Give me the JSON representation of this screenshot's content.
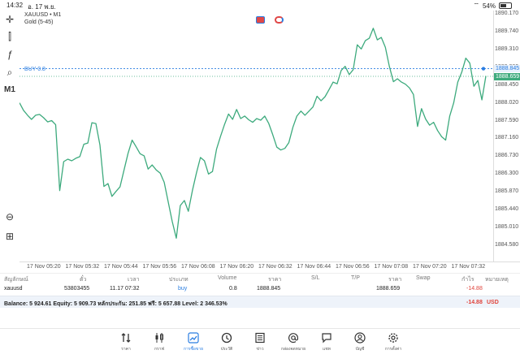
{
  "status_bar": {
    "time": "14:32",
    "date": "อ. 17 พ.ย.",
    "battery": "54%"
  },
  "chart": {
    "symbol_line": "XAUUSD • M1",
    "subtitle": "Gold (5-45)",
    "buy_label": "BUY 0.8",
    "buy_price_tag": "1888.845",
    "current_price_tag": "1888.659",
    "timeframe": "M1",
    "line_color": "#3daa7d",
    "buy_line_color": "#2a7de1"
  },
  "chart_data": {
    "type": "line",
    "series": [
      {
        "values": [
          1888.02,
          1887.84,
          1887.72,
          1887.62,
          1887.72,
          1887.74,
          1887.66,
          1887.56,
          1887.59,
          1887.49,
          1885.9,
          1886.6,
          1886.66,
          1886.62,
          1886.68,
          1886.72,
          1887.02,
          1887.05,
          1887.54,
          1887.52,
          1887.0,
          1886.0,
          1886.07,
          1885.76,
          1885.88,
          1885.99,
          1886.4,
          1886.8,
          1887.12,
          1886.96,
          1886.79,
          1886.74,
          1886.42,
          1886.52,
          1886.4,
          1886.32,
          1886.1,
          1885.62,
          1885.15,
          1884.75,
          1885.54,
          1885.66,
          1885.4,
          1885.9,
          1886.32,
          1886.7,
          1886.62,
          1886.3,
          1886.36,
          1886.9,
          1887.21,
          1887.5,
          1887.75,
          1887.62,
          1887.86,
          1887.64,
          1887.7,
          1887.61,
          1887.55,
          1887.64,
          1887.6,
          1887.7,
          1887.52,
          1887.25,
          1886.95,
          1886.88,
          1886.92,
          1887.06,
          1887.43,
          1887.7,
          1887.82,
          1887.72,
          1887.82,
          1887.92,
          1888.18,
          1888.07,
          1888.17,
          1888.34,
          1888.52,
          1888.48,
          1888.8,
          1888.9,
          1888.7,
          1888.82,
          1889.42,
          1889.32,
          1889.52,
          1889.58,
          1889.82,
          1889.54,
          1889.6,
          1889.36,
          1888.9,
          1888.53,
          1888.6,
          1888.52,
          1888.47,
          1888.38,
          1888.22,
          1887.45,
          1887.88,
          1887.63,
          1887.48,
          1887.55,
          1887.35,
          1887.2,
          1887.12,
          1887.7,
          1888.02,
          1888.52,
          1888.76,
          1889.1,
          1888.98,
          1888.42,
          1888.56,
          1888.09,
          1888.67
        ]
      }
    ],
    "ylim": [
      1884.58,
      1890.35
    ],
    "yticks": [
      "1890.170",
      "1889.740",
      "1889.310",
      "1888.880",
      "1888.450",
      "1888.020",
      "1887.590",
      "1887.160",
      "1886.730",
      "1886.300",
      "1885.870",
      "1885.440",
      "1885.010",
      "1884.580"
    ],
    "xticks": [
      "17 Nov 05:20",
      "17 Nov 05:32",
      "17 Nov 05:44",
      "17 Nov 05:56",
      "17 Nov 06:08",
      "17 Nov 06:20",
      "17 Nov 06:32",
      "17 Nov 06:44",
      "17 Nov 06:56",
      "17 Nov 07:08",
      "17 Nov 07:20",
      "17 Nov 07:32"
    ],
    "buy_level": 1888.845,
    "current_level": 1888.659
  },
  "trades": {
    "headers": [
      "สัญลักษณ์",
      "ตั๋ว",
      "เวลา",
      "ประเภท",
      "Volume",
      "ราคา",
      "S/L",
      "T/P",
      "ราคา",
      "Swap",
      "กำไร",
      "หมายเหตุ"
    ],
    "row": {
      "symbol": "xauusd",
      "ticket": "53803455",
      "time": "11.17 07:32",
      "type": "buy",
      "volume": "0.8",
      "open_price": "1888.845",
      "current_price": "1888.659",
      "profit": "-14.88"
    },
    "balance_line": "Balance: 5 924.61 Equity: 5 909.73 หลักประกัน: 251.85 ฟรี: 5 657.88 Level: 2 346.53%",
    "total_profit": "-14.88",
    "currency": "USD"
  },
  "tabs": [
    {
      "label": "ราคา",
      "icon": "quotes-arrows-icon"
    },
    {
      "label": "กราฟ",
      "icon": "candles-icon"
    },
    {
      "label": "การซื้อขาย",
      "icon": "trade-chart-icon",
      "active": true
    },
    {
      "label": "ประวัติ",
      "icon": "history-clock-icon"
    },
    {
      "label": "ข่าว",
      "icon": "news-icon"
    },
    {
      "label": "กล่องจดหมาย",
      "icon": "mailbox-at-icon"
    },
    {
      "label": "แชท",
      "icon": "chat-icon"
    },
    {
      "label": "บัญชี",
      "icon": "account-icon"
    },
    {
      "label": "การตั้งค่า",
      "icon": "settings-gear-icon"
    }
  ]
}
